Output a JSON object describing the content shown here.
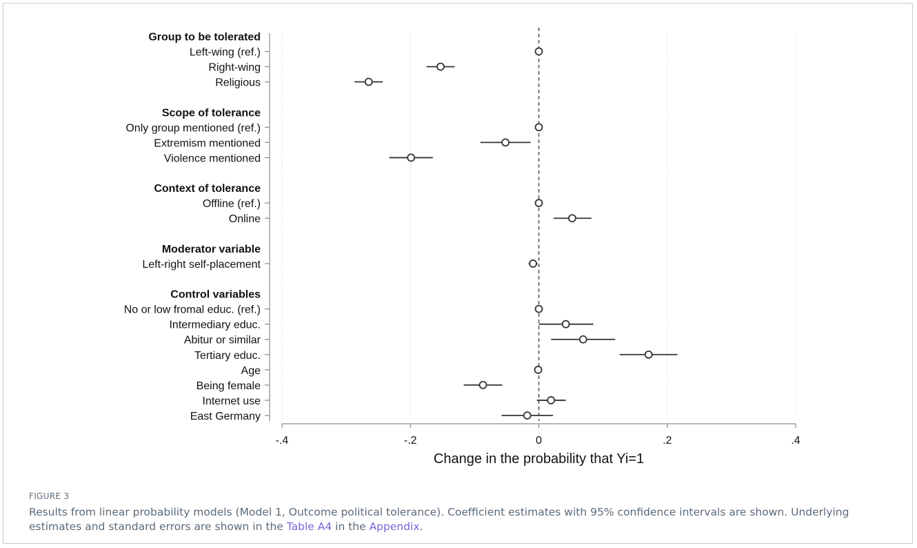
{
  "chart_data": {
    "type": "scatter",
    "subtype": "coefficient-plot-with-ci",
    "xlabel": "Change in the probability that Yi=1",
    "xlim": [
      -0.4,
      0.4
    ],
    "xticks": [
      -0.4,
      -0.2,
      0,
      0.2,
      0.4
    ],
    "xtick_labels": [
      "-.4",
      "-.2",
      "0",
      ".2",
      ".4"
    ],
    "vertical_gridlines": "dotted",
    "reference_line": {
      "x": 0,
      "style": "dashed"
    },
    "rows": [
      {
        "kind": "header",
        "label": "Group to be tolerated"
      },
      {
        "kind": "item",
        "label": "Left-wing (ref.)",
        "estimate": 0.0,
        "ci": null
      },
      {
        "kind": "item",
        "label": "Right-wing",
        "estimate": -0.153,
        "ci": [
          -0.175,
          -0.131
        ]
      },
      {
        "kind": "item",
        "label": "Religious",
        "estimate": -0.265,
        "ci": [
          -0.287,
          -0.243
        ]
      },
      {
        "kind": "gap"
      },
      {
        "kind": "header",
        "label": "Scope of tolerance"
      },
      {
        "kind": "item",
        "label": "Only group mentioned (ref.)",
        "estimate": 0.0,
        "ci": null
      },
      {
        "kind": "item",
        "label": "Extremism mentioned",
        "estimate": -0.052,
        "ci": [
          -0.091,
          -0.013
        ]
      },
      {
        "kind": "item",
        "label": "Violence mentioned",
        "estimate": -0.199,
        "ci": [
          -0.233,
          -0.165
        ]
      },
      {
        "kind": "gap"
      },
      {
        "kind": "header",
        "label": "Context of tolerance"
      },
      {
        "kind": "item",
        "label": "Offline (ref.)",
        "estimate": 0.0,
        "ci": null
      },
      {
        "kind": "item",
        "label": "Online",
        "estimate": 0.052,
        "ci": [
          0.023,
          0.082
        ]
      },
      {
        "kind": "gap"
      },
      {
        "kind": "header",
        "label": "Moderator variable"
      },
      {
        "kind": "item",
        "label": "Left-right self-placement",
        "estimate": -0.009,
        "ci": [
          -0.016,
          -0.002
        ]
      },
      {
        "kind": "gap"
      },
      {
        "kind": "header",
        "label": "Control variables"
      },
      {
        "kind": "item",
        "label": "No or low fromal educ. (ref.)",
        "estimate": 0.0,
        "ci": null
      },
      {
        "kind": "item",
        "label": "Intermediary educ.",
        "estimate": 0.042,
        "ci": [
          0.0,
          0.085
        ]
      },
      {
        "kind": "item",
        "label": "Abitur or similar",
        "estimate": 0.069,
        "ci": [
          0.019,
          0.119
        ]
      },
      {
        "kind": "item",
        "label": "Tertiary educ.",
        "estimate": 0.171,
        "ci": [
          0.126,
          0.216
        ]
      },
      {
        "kind": "item",
        "label": "Age",
        "estimate": -0.001,
        "ci": [
          -0.002,
          0.0
        ]
      },
      {
        "kind": "item",
        "label": "Being female",
        "estimate": -0.087,
        "ci": [
          -0.117,
          -0.057
        ]
      },
      {
        "kind": "item",
        "label": "Internet use",
        "estimate": 0.019,
        "ci": [
          -0.003,
          0.042
        ]
      },
      {
        "kind": "item",
        "label": "East Germany",
        "estimate": -0.018,
        "ci": [
          -0.058,
          0.022
        ]
      }
    ]
  },
  "caption": {
    "figure_label": "FIGURE 3",
    "text_1": "Results from linear probability models (Model 1, Outcome political tolerance). Coefficient estimates with 95% confidence intervals are shown. Underlying estimates and standard errors are shown in the ",
    "link_1": "Table A4",
    "text_2": " in the ",
    "link_2": "Appendix",
    "text_3": "."
  }
}
